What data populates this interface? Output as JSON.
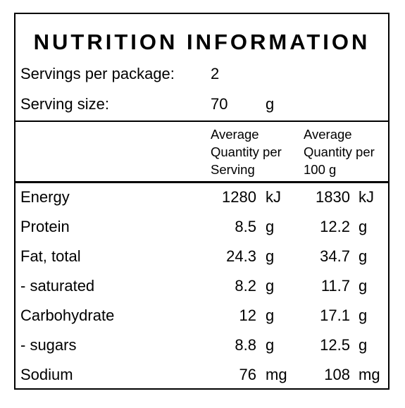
{
  "panel": {
    "title": "NUTRITION INFORMATION",
    "servings": {
      "label": "Servings per package:",
      "value": "2"
    },
    "serving_size": {
      "label": "Serving size:",
      "value": "70",
      "unit": "g"
    },
    "columns": {
      "per_serving": [
        "Average",
        "Quantity per",
        "Serving"
      ],
      "per_100g": [
        "Average",
        "Quantity per",
        "100 g"
      ]
    },
    "rows": [
      {
        "name": "Energy",
        "per_serving": "1280",
        "per_serving_unit": "kJ",
        "per_100g": "1830",
        "per_100g_unit": "kJ"
      },
      {
        "name": "Protein",
        "per_serving": "8.5",
        "per_serving_unit": "g",
        "per_100g": "12.2",
        "per_100g_unit": "g"
      },
      {
        "name": "Fat, total",
        "per_serving": "24.3",
        "per_serving_unit": "g",
        "per_100g": "34.7",
        "per_100g_unit": "g"
      },
      {
        "name": "- saturated",
        "per_serving": "8.2",
        "per_serving_unit": "g",
        "per_100g": "11.7",
        "per_100g_unit": "g"
      },
      {
        "name": "Carbohydrate",
        "per_serving": "12",
        "per_serving_unit": "g",
        "per_100g": "17.1",
        "per_100g_unit": "g"
      },
      {
        "name": "- sugars",
        "per_serving": "8.8",
        "per_serving_unit": "g",
        "per_100g": "12.5",
        "per_100g_unit": "g"
      },
      {
        "name": "Sodium",
        "per_serving": "76",
        "per_serving_unit": "mg",
        "per_100g": "108",
        "per_100g_unit": "mg"
      }
    ]
  }
}
